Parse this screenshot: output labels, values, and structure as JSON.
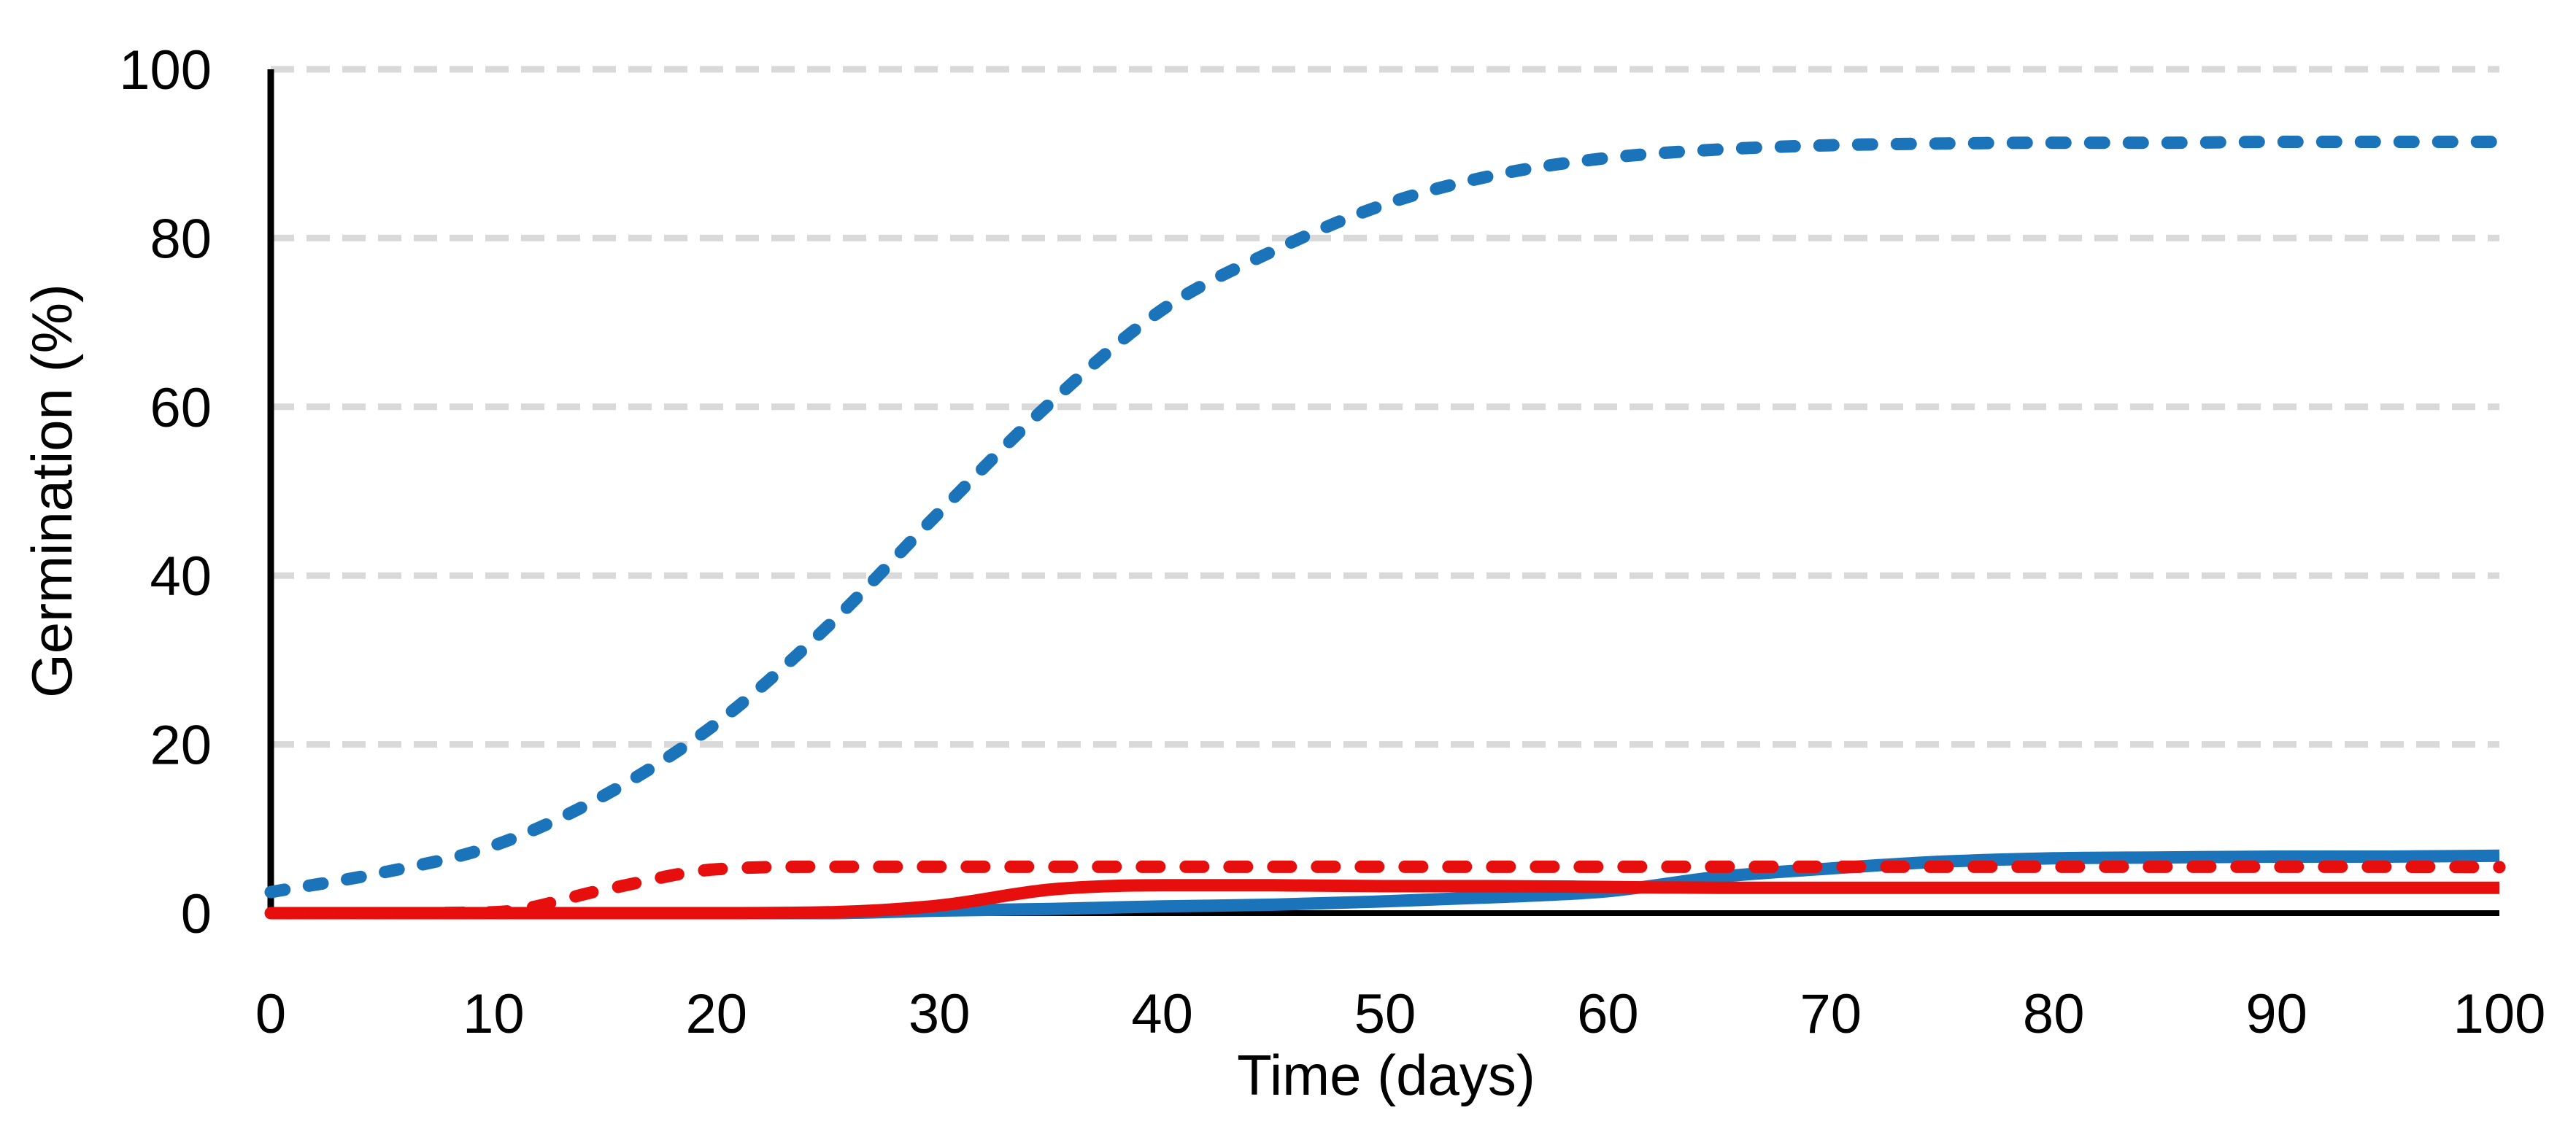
{
  "chart_data": {
    "type": "line",
    "title": "",
    "xlabel": "Time (days)",
    "ylabel": "Germination (%)",
    "xlim": [
      0,
      100
    ],
    "ylim": [
      0,
      100
    ],
    "grid": "horizontal-dashed-gridlines",
    "legend_position": "none",
    "x": [
      0,
      5,
      10,
      15,
      20,
      25,
      30,
      35,
      40,
      45,
      50,
      55,
      60,
      65,
      70,
      75,
      80,
      85,
      90,
      95,
      100
    ],
    "series": [
      {
        "name": "blue dashed",
        "color": "#1b74ba",
        "style": "dashed",
        "values": [
          2.5,
          4.8,
          8,
          14,
          22.5,
          34,
          47.5,
          60.5,
          71.5,
          78.5,
          84,
          87.5,
          89.5,
          90.5,
          91,
          91.2,
          91.3,
          91.3,
          91.4,
          91.4,
          91.4
        ]
      },
      {
        "name": "blue solid",
        "color": "#1b74ba",
        "style": "solid",
        "values": [
          0,
          0,
          0,
          0,
          0,
          0,
          0.3,
          0.5,
          0.8,
          1.0,
          1.4,
          1.9,
          2.6,
          4.3,
          5.3,
          6.1,
          6.5,
          6.6,
          6.7,
          6.7,
          6.8
        ]
      },
      {
        "name": "red solid",
        "color": "#e60f0d",
        "style": "solid",
        "values": [
          0,
          0,
          0,
          0,
          0,
          0.1,
          0.9,
          2.8,
          3.3,
          3.3,
          3.2,
          3.2,
          3.1,
          3.0,
          3.0,
          3.0,
          3.0,
          3.0,
          3.0,
          3.0,
          3.0
        ]
      },
      {
        "name": "red dashed",
        "color": "#e60f0d",
        "style": "dashed",
        "values": [
          0,
          0,
          0.1,
          2.8,
          5.2,
          5.5,
          5.5,
          5.5,
          5.5,
          5.5,
          5.5,
          5.5,
          5.5,
          5.5,
          5.5,
          5.5,
          5.5,
          5.5,
          5.5,
          5.5,
          5.45
        ]
      }
    ]
  },
  "x_axis": {
    "title": "Time (days)",
    "ticks": [
      0,
      10,
      20,
      30,
      40,
      50,
      60,
      70,
      80,
      90,
      100
    ]
  },
  "y_axis": {
    "title": "Germination (%)",
    "ticks": [
      0,
      20,
      40,
      60,
      80,
      100
    ]
  },
  "colors": {
    "gridline": "#d9d9d9",
    "axis": "#000000",
    "background": "#ffffff",
    "blue_series": "#1b74ba",
    "red_series": "#e60f0d"
  }
}
